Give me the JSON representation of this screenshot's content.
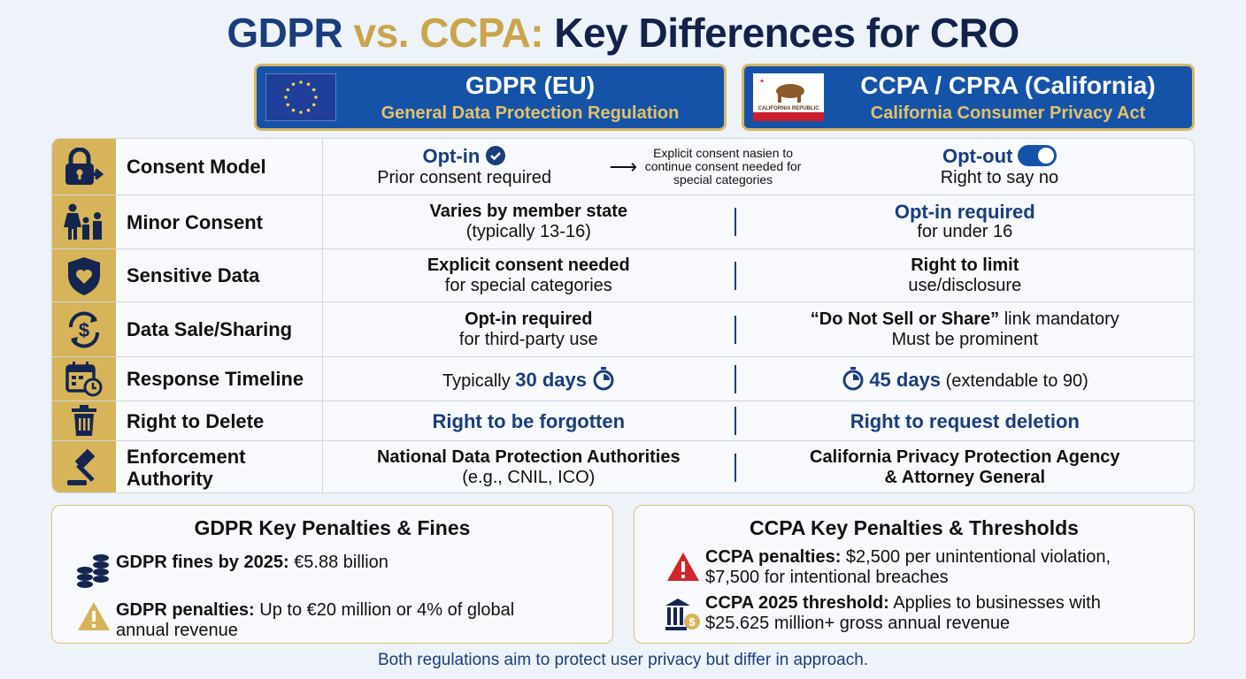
{
  "title": {
    "part1": "GDPR",
    "part2": " vs. CCPA:",
    "part3": " Key Differences for CRO"
  },
  "colors": {
    "navy": "#1a3d7c",
    "gold": "#d7b45a",
    "header_blue": "#1553a8",
    "red": "#d2262e"
  },
  "gdpr_header": {
    "title": "GDPR (EU)",
    "subtitle": "General Data Protection Regulation",
    "flag": "eu-flag-icon"
  },
  "ccpa_header": {
    "title": "CCPA / CPRA (California)",
    "subtitle": "California Consumer Privacy Act",
    "flag": "california-flag-icon",
    "flag_text": "CALIFORNIA REPUBLIC"
  },
  "rows": [
    {
      "label": "Consent Model",
      "icon": "lock-arrow-icon",
      "gdpr_main": "Opt-in",
      "gdpr_sub": "Prior consent required",
      "note": "Explicit consent nasien to continue consent needed for special categories",
      "ccpa_main": "Opt-out",
      "ccpa_sub": "Right to say no"
    },
    {
      "label": "Minor Consent",
      "icon": "family-icon",
      "gdpr_main": "Varies by member state",
      "gdpr_sub": "(typically 13-16)",
      "ccpa_main": "Opt-in required",
      "ccpa_sub": "for under 16"
    },
    {
      "label": "Sensitive Data",
      "icon": "shield-heart-icon",
      "gdpr_main": "Explicit consent needed",
      "gdpr_sub": "for special categories",
      "ccpa_main": "Right to limit",
      "ccpa_sub": "use/disclosure"
    },
    {
      "label": "Data Sale/Sharing",
      "icon": "dollar-cycle-icon",
      "gdpr_main": "Opt-in required",
      "gdpr_sub": "for third-party use",
      "ccpa_main": "“Do Not Sell or Share”",
      "ccpa_main_rest": " link mandatory",
      "ccpa_sub": "Must be prominent"
    },
    {
      "label": "Response Timeline",
      "icon": "calendar-clock-icon",
      "gdpr_pre": "Typically ",
      "gdpr_main": "30 days",
      "ccpa_main": "45 days",
      "ccpa_rest": " (extendable to 90)"
    },
    {
      "label": "Right to Delete",
      "icon": "trash-icon",
      "gdpr_main": "Right to be forgotten",
      "ccpa_main": "Right to request deletion"
    },
    {
      "label": "Enforcement Authority",
      "icon": "gavel-icon",
      "gdpr_main": "National Data Protection Authorities",
      "gdpr_sub": "(e.g., CNIL, ICO)",
      "ccpa_main": "California Privacy Protection Agency",
      "ccpa_sub": "& Attorney General"
    }
  ],
  "gdpr_penalties": {
    "title": "GDPR Key Penalties & Fines",
    "items": [
      {
        "icon": "coins-icon",
        "bold": "GDPR fines by 2025:",
        "text": " €5.88 billion"
      },
      {
        "icon": "warning-icon",
        "bold": "GDPR penalties:",
        "text": " Up to €20 million or 4% of global annual revenue"
      }
    ]
  },
  "ccpa_penalties": {
    "title": "CCPA Key Penalties & Thresholds",
    "items": [
      {
        "icon": "alert-red-icon",
        "bold": "CCPA penalties:",
        "text": " $2,500 per unintentional violation, $7,500 for intentional breaches"
      },
      {
        "icon": "bank-dollar-icon",
        "bold": "CCPA 2025 threshold:",
        "text": " Applies to businesses with $25.625 million+ gross annual revenue"
      }
    ]
  },
  "footer": "Both regulations aim to protect user privacy but differ in approach."
}
